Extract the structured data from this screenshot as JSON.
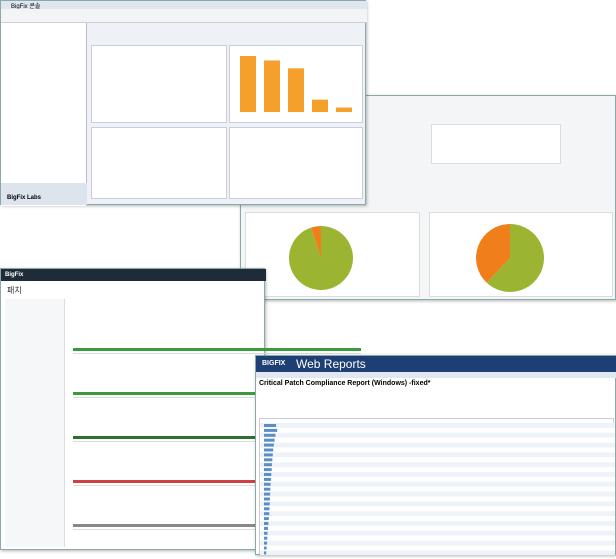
{
  "console": {
    "title": "BigFix 콘솔",
    "tree_footer": [
      "BigFix Labs"
    ],
    "bar_chart": {
      "type": "bar",
      "values": [
        100,
        92,
        78,
        22,
        8
      ],
      "color": "#f5a02a"
    }
  },
  "dashboard": {
    "pie_left": {
      "type": "pie",
      "values": [
        95,
        5
      ],
      "colors": [
        "#9bb533",
        "#f07e1a"
      ]
    },
    "pie_right": {
      "type": "pie",
      "values": [
        62,
        38
      ],
      "colors": [
        "#9bb533",
        "#f07e1a"
      ]
    }
  },
  "patch_app": {
    "brand": "BigFix",
    "title": "패치"
  },
  "web_reports": {
    "brand": "BIGFIX",
    "product": "Web Reports",
    "title": "Critical Patch Compliance Report (Windows) -fixed*",
    "compliance": {
      "type": "bar",
      "values": [
        55,
        60,
        52,
        48,
        45,
        42,
        40,
        38,
        36,
        35,
        33,
        32,
        30,
        29,
        28,
        27,
        26,
        25,
        24,
        22,
        20,
        18,
        16,
        15,
        14,
        12,
        10
      ],
      "color": "#5b8ec9"
    }
  }
}
